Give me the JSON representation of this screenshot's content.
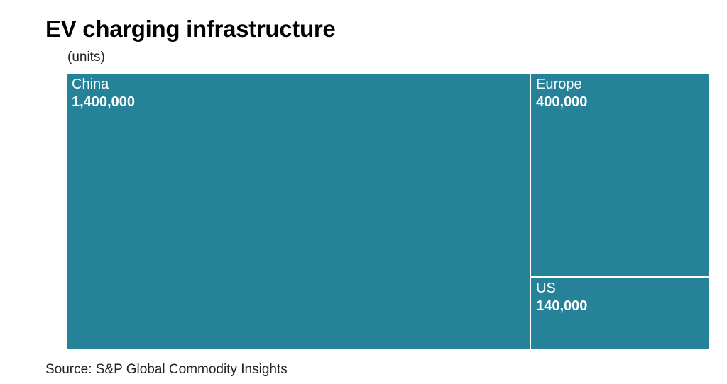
{
  "title": "EV charging infrastructure",
  "subtitle": "(units)",
  "source": "Source: S&P Global Commodity Insights",
  "colors": {
    "tile": "#268299",
    "tile_border": "#ffffff",
    "text_on_tile": "#ffffff"
  },
  "chart_data": {
    "type": "treemap",
    "title": "EV charging infrastructure",
    "unit": "(units)",
    "items": [
      {
        "label": "China",
        "value": 1400000,
        "value_label": "1,400,000"
      },
      {
        "label": "Europe",
        "value": 400000,
        "value_label": "400,000"
      },
      {
        "label": "US",
        "value": 140000,
        "value_label": "140,000"
      }
    ]
  }
}
